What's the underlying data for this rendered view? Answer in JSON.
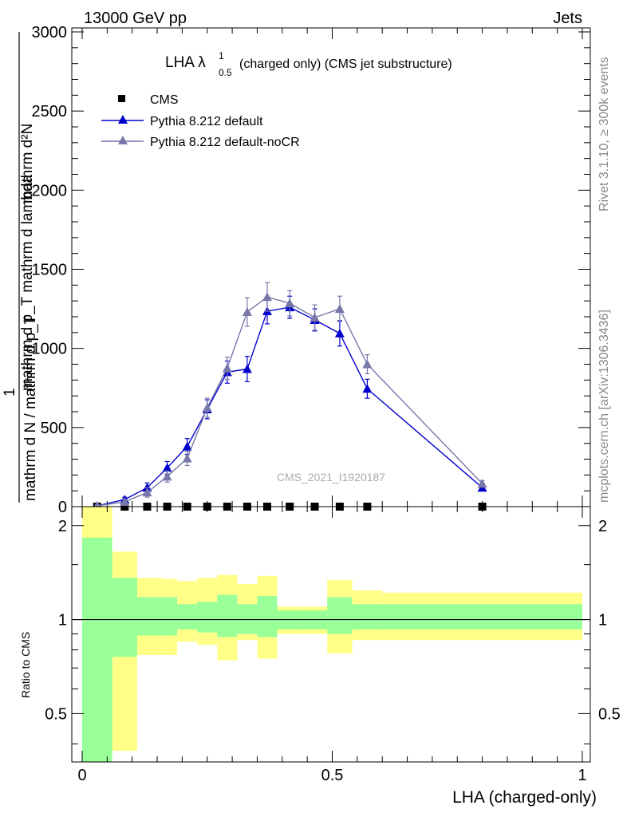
{
  "header": {
    "energy": "13000 GeV pp",
    "category": "Jets",
    "side_top": "Rivet 3.1.10, ≥ 300k events",
    "side_bottom": "mcplots.cern.ch [arXiv:1306.3436]",
    "watermark": "CMS_2021_I1920187"
  },
  "chart_data": [
    {
      "type": "line",
      "title": "LHA λ¹₀.₅ (charged only) (CMS jet substructure)",
      "title_main": "LHA λ",
      "title_sup": "1",
      "title_sub": "0.5",
      "title_rest": "(charged only) (CMS jet substructure)",
      "xlabel": "LHA (charged-only)",
      "ylabel_numerator": "1",
      "ylabel_fraction_top": "mathrm d²N",
      "ylabel_fraction_bottom": "mathrm d p_T mathrm d lambda",
      "ylabel_denominator": "mathrm d N / mathrm d p_T",
      "ylabel_line1": "mathrm d N / mathrm d p_T mathrm d lambda",
      "ylabel_line2": "mathrm d²N",
      "xlim": [
        0,
        1
      ],
      "ylim": [
        0,
        3000
      ],
      "y_ticks": [
        0,
        500,
        1000,
        1500,
        2000,
        2500,
        3000
      ],
      "y_tick_labels": [
        "0",
        "500",
        "1000",
        "1500",
        "2000",
        "2500",
        "3000"
      ],
      "x": [
        0.03,
        0.085,
        0.13,
        0.17,
        0.21,
        0.25,
        0.29,
        0.33,
        0.37,
        0.415,
        0.465,
        0.515,
        0.57,
        0.8
      ],
      "legend_position": "top-left",
      "series": [
        {
          "name": "CMS",
          "marker": "square",
          "color": "#000000",
          "values": [
            0,
            0,
            0,
            0,
            0,
            0,
            0,
            0,
            0,
            0,
            0,
            0,
            0,
            0
          ]
        },
        {
          "name": "Pythia 8.212 default",
          "marker": "triangle",
          "color": "#0000cc",
          "values": [
            5,
            45,
            120,
            245,
            380,
            615,
            850,
            870,
            1235,
            1260,
            1180,
            1095,
            745,
            120
          ],
          "errors": [
            8,
            15,
            30,
            40,
            50,
            60,
            70,
            80,
            80,
            70,
            70,
            80,
            60,
            20
          ]
        },
        {
          "name": "Pythia 8.212 default-noCR",
          "marker": "triangle",
          "color": "#7777aa",
          "values": [
            5,
            30,
            90,
            190,
            305,
            625,
            875,
            1230,
            1325,
            1285,
            1195,
            1250,
            900,
            145
          ],
          "errors": [
            8,
            15,
            30,
            35,
            45,
            60,
            70,
            90,
            90,
            80,
            80,
            80,
            60,
            20
          ]
        }
      ]
    },
    {
      "type": "area",
      "ylabel": "Ratio to CMS",
      "xlabel": "LHA (charged-only)",
      "xlim": [
        0,
        1
      ],
      "ylim": [
        0.35,
        2.3
      ],
      "y_ticks": [
        0.5,
        1,
        2
      ],
      "y_tick_labels": [
        "0.5",
        "1",
        "2"
      ],
      "x_ticks": [
        0,
        0.5,
        1
      ],
      "x_tick_labels": [
        "0",
        "0.5",
        "1"
      ],
      "bin_edges": [
        0,
        0.06,
        0.11,
        0.16,
        0.19,
        0.23,
        0.27,
        0.31,
        0.35,
        0.39,
        0.43,
        0.49,
        0.54,
        0.6,
        1.0
      ],
      "stat_band_colour": "#99ff99",
      "total_band_colour": "#ffff88",
      "stat_band": {
        "upper": [
          1.83,
          1.36,
          1.18,
          1.18,
          1.12,
          1.14,
          1.2,
          1.12,
          1.19,
          1.07,
          1.07,
          1.18,
          1.12,
          1.12
        ],
        "lower": [
          0.3,
          0.76,
          0.89,
          0.89,
          0.93,
          0.91,
          0.88,
          0.9,
          0.88,
          0.93,
          0.93,
          0.9,
          0.93,
          0.93
        ]
      },
      "total_band": {
        "upper": [
          2.5,
          1.65,
          1.36,
          1.35,
          1.33,
          1.36,
          1.39,
          1.3,
          1.38,
          1.1,
          1.1,
          1.34,
          1.24,
          1.22
        ],
        "lower": [
          0.2,
          0.38,
          0.77,
          0.77,
          0.85,
          0.83,
          0.74,
          0.86,
          0.75,
          0.9,
          0.9,
          0.78,
          0.86,
          0.86
        ]
      },
      "reference_line": 1
    }
  ]
}
